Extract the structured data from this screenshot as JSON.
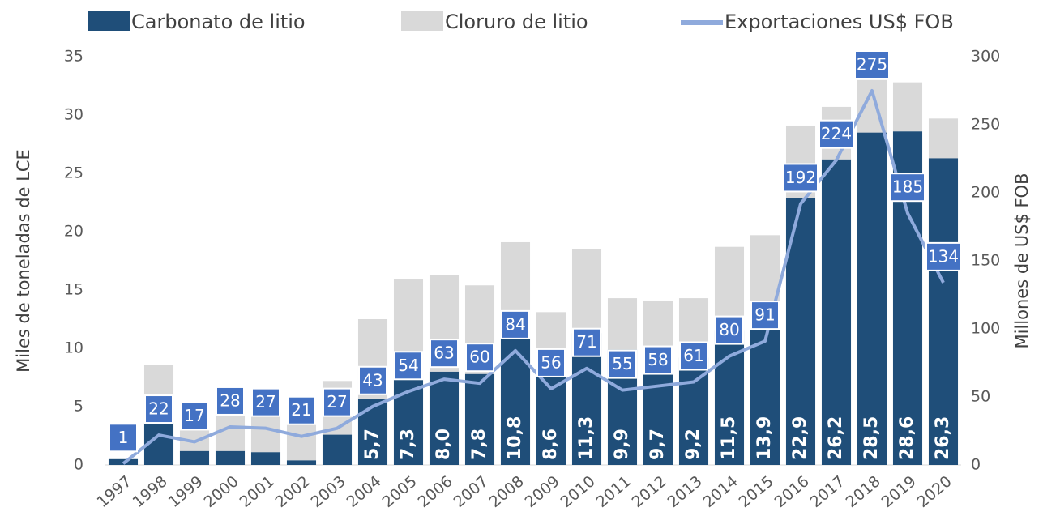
{
  "chart_data": {
    "type": "bar",
    "stacked": true,
    "categories": [
      "1997",
      "1998",
      "1999",
      "2000",
      "2001",
      "2002",
      "2003",
      "2004",
      "2005",
      "2006",
      "2007",
      "2008",
      "2009",
      "2010",
      "2011",
      "2012",
      "2013",
      "2014",
      "2015",
      "2016",
      "2017",
      "2018",
      "2019",
      "2020"
    ],
    "series": [
      {
        "name": "Carbonato de litio",
        "color": "#1f4e79",
        "values": [
          0.5,
          3.6,
          1.2,
          1.2,
          1.1,
          0.4,
          2.6,
          5.7,
          7.3,
          8.0,
          7.8,
          10.8,
          8.6,
          11.3,
          9.9,
          9.7,
          9.2,
          11.5,
          13.9,
          22.9,
          26.2,
          28.5,
          28.6,
          26.3
        ],
        "value_labels": [
          null,
          null,
          null,
          null,
          null,
          null,
          null,
          "5,7",
          "7,3",
          "8,0",
          "7,8",
          "10,8",
          "8,6",
          "11,3",
          "9,9",
          "9,7",
          "9,2",
          "11,5",
          "13,9",
          "22,9",
          "26,2",
          "28,5",
          "28,6",
          "26,3"
        ]
      },
      {
        "name": "Cloruro de litio",
        "color": "#d9d9d9",
        "values": [
          0,
          5.0,
          2.8,
          3.8,
          3.5,
          3.1,
          4.6,
          6.8,
          8.6,
          8.3,
          7.6,
          8.3,
          4.5,
          7.2,
          4.4,
          4.4,
          5.1,
          7.2,
          5.8,
          6.2,
          4.5,
          4.5,
          4.2,
          3.4
        ]
      },
      {
        "name": "Exportaciones US$ FOB",
        "color": "#8faadc",
        "type": "line",
        "axis": "y2",
        "values": [
          1,
          22,
          17,
          28,
          27,
          21,
          27,
          43,
          54,
          63,
          60,
          84,
          56,
          71,
          55,
          58,
          61,
          80,
          91,
          192,
          224,
          275,
          185,
          134
        ]
      }
    ],
    "ylabel": "Miles de toneladas de LCE",
    "y2label": "Millones de US$ FOB",
    "ylim": [
      0,
      35
    ],
    "yticks": [
      0,
      5,
      10,
      15,
      20,
      25,
      30,
      35
    ],
    "y2lim": [
      0,
      300
    ],
    "y2ticks": [
      0,
      50,
      100,
      150,
      200,
      250,
      300
    ]
  }
}
